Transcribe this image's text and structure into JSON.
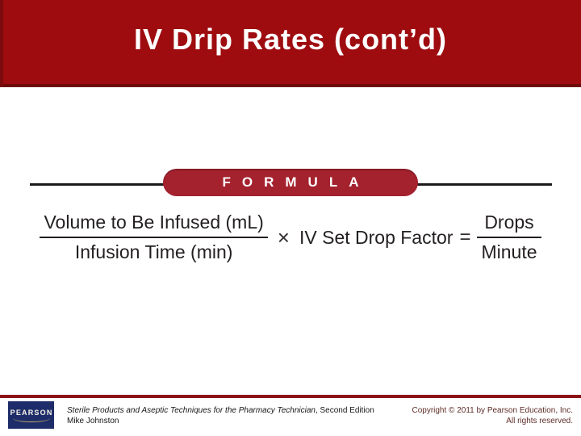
{
  "colors": {
    "header_red": "#9E0C10",
    "header_red_edge": "#7B0B0E",
    "header_red_bottom": "#6F0A0B",
    "banner_red": "#A4212E",
    "rule_black": "#1C1A1B",
    "formula_text": "#231F20",
    "footer_rule_red": "#8B1315",
    "pearson_navy": "#1E2D69",
    "copyright_text": "#5E2D28"
  },
  "header": {
    "title": "IV Drip Rates (cont’d)"
  },
  "formula_figure": {
    "banner_label": "FORMULA",
    "numerator_left": "Volume to Be Infused (mL)",
    "denominator_left": "Infusion Time (min)",
    "multiply_sign": "×",
    "middle_term": "IV Set Drop Factor",
    "equals_sign": "=",
    "numerator_right": "Drops",
    "denominator_right": "Minute"
  },
  "footer": {
    "logo_text": "PEARSON",
    "book_title": "Sterile Products and Aseptic Techniques for the Pharmacy Technician",
    "book_edition": ", Second Edition",
    "author": "Mike Johnston",
    "copyright_line1": "Copyright © 2011 by Pearson Education, Inc.",
    "copyright_line2": "All rights reserved."
  }
}
